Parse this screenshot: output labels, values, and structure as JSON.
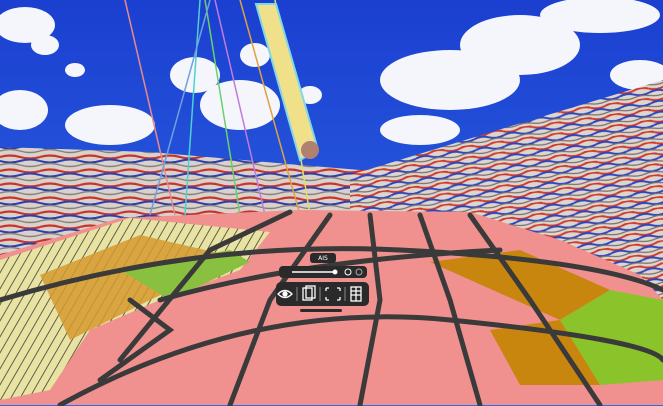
{
  "toolbar": {
    "label": "AIS"
  }
}
